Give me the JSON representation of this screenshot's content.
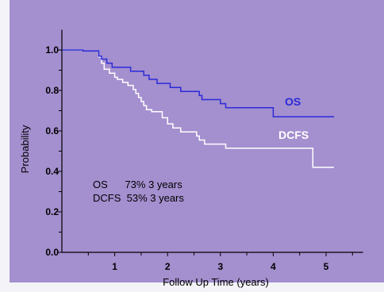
{
  "chart_data": {
    "type": "line",
    "title": "",
    "xlabel": "Follow Up Time (years)",
    "ylabel": "Probability",
    "xlim": [
      0,
      5.7
    ],
    "ylim": [
      0,
      1.1
    ],
    "x_ticks": [
      "1",
      "2",
      "3",
      "4",
      "5"
    ],
    "y_ticks": [
      "0.0",
      "0.2",
      "0.4",
      "0.6",
      "0.8",
      "1.0"
    ],
    "grid": false,
    "annotations": [
      {
        "text": "OS      73% 3 years"
      },
      {
        "text": "DCFS  53% 3 years"
      }
    ],
    "colors": {
      "plot_bg": "#a48fcf",
      "os": "#2b2bd6",
      "dcfs": "#ffffff",
      "os_label": "#2b2bd6",
      "dcfs_label": "#ffffff"
    },
    "series": [
      {
        "name": "OS",
        "step": true,
        "x": [
          0,
          0.4,
          0.7,
          0.75,
          0.85,
          0.95,
          1.3,
          1.55,
          1.65,
          1.8,
          2.05,
          2.25,
          2.6,
          2.65,
          3.0,
          3.1,
          4.0,
          5.15
        ],
        "y": [
          1.0,
          0.995,
          0.97,
          0.955,
          0.935,
          0.915,
          0.895,
          0.875,
          0.855,
          0.835,
          0.815,
          0.795,
          0.775,
          0.755,
          0.735,
          0.715,
          0.67,
          0.67
        ]
      },
      {
        "name": "DCFS",
        "step": true,
        "x": [
          0,
          0.4,
          0.7,
          0.75,
          0.8,
          0.9,
          1.0,
          1.05,
          1.15,
          1.25,
          1.35,
          1.4,
          1.45,
          1.5,
          1.55,
          1.6,
          1.7,
          1.9,
          2.0,
          2.1,
          2.25,
          2.55,
          2.6,
          2.7,
          2.85,
          3.1,
          4.75,
          5.15
        ],
        "y": [
          1.0,
          0.995,
          0.965,
          0.935,
          0.905,
          0.885,
          0.865,
          0.855,
          0.84,
          0.825,
          0.805,
          0.785,
          0.765,
          0.745,
          0.725,
          0.705,
          0.695,
          0.665,
          0.635,
          0.615,
          0.595,
          0.575,
          0.555,
          0.535,
          0.535,
          0.515,
          0.42,
          0.42
        ]
      }
    ]
  }
}
